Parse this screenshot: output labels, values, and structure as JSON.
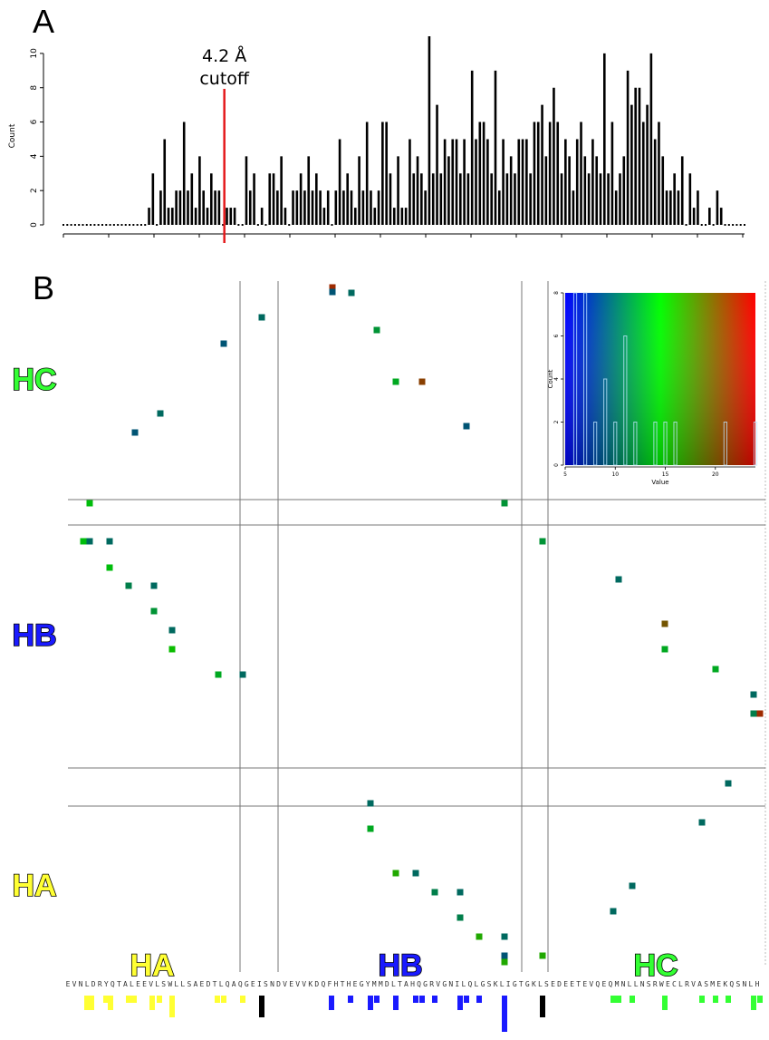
{
  "panels": {
    "a": "A",
    "b": "B"
  },
  "chart_data": [
    {
      "type": "bar",
      "panel": "A",
      "ylabel": "Count",
      "ylim": [
        0,
        11
      ],
      "yticks": [
        0,
        2,
        4,
        6,
        8,
        10
      ],
      "annotation": {
        "line1": "4.2 Å",
        "line2": "cutoff",
        "line_color": "#e41a1c",
        "x_index": 41
      },
      "values": [
        0,
        0,
        0,
        0,
        0,
        0,
        0,
        0,
        0,
        0,
        0,
        0,
        0,
        0,
        0,
        0,
        0,
        0,
        0,
        0,
        0,
        0,
        1,
        3,
        0,
        2,
        5,
        1,
        1,
        2,
        2,
        6,
        2,
        3,
        1,
        4,
        2,
        1,
        3,
        2,
        2,
        0,
        1,
        1,
        1,
        0,
        0,
        4,
        2,
        3,
        0,
        1,
        0,
        3,
        3,
        2,
        4,
        1,
        0,
        2,
        2,
        3,
        2,
        4,
        2,
        3,
        2,
        1,
        2,
        0,
        2,
        5,
        2,
        3,
        2,
        1,
        4,
        2,
        6,
        2,
        1,
        2,
        6,
        6,
        3,
        1,
        4,
        1,
        1,
        5,
        3,
        4,
        3,
        2,
        11,
        3,
        7,
        3,
        5,
        4,
        5,
        5,
        3,
        5,
        3,
        9,
        5,
        6,
        6,
        5,
        3,
        9,
        2,
        5,
        3,
        4,
        3,
        5,
        5,
        5,
        3,
        6,
        6,
        7,
        4,
        6,
        8,
        6,
        3,
        5,
        4,
        2,
        5,
        6,
        4,
        3,
        5,
        4,
        3,
        10,
        3,
        6,
        2,
        3,
        4,
        9,
        7,
        8,
        8,
        6,
        7,
        10,
        5,
        6,
        4,
        2,
        2,
        3,
        2,
        4,
        0,
        3,
        1,
        2,
        0,
        0,
        1,
        0,
        2,
        1,
        0,
        0,
        0,
        0,
        0,
        0
      ]
    },
    {
      "type": "heatmap",
      "panel": "B",
      "helices": [
        {
          "name": "HA",
          "color": "#ffff33"
        },
        {
          "name": "HB",
          "color": "#1a1aff"
        },
        {
          "name": "HC",
          "color": "#33ff33"
        }
      ],
      "sequence": "EVNLDRYQTALEEVLSWLLSAEDTLQAQGEISNDVEVVKDQFHTHEGYMMDLTAHQGRVGNILQLGSKLIGTGKLSEDEETEVQEQMNLLNSRWECLRVASMEKQSNLH",
      "boundary_index": [
        27,
        33,
        81
      ],
      "contacts": [
        {
          "i": 3,
          "j": 42,
          "v": 9
        },
        {
          "i": 4,
          "j": 32,
          "v": 10
        },
        {
          "i": 5,
          "j": 21,
          "v": 7
        },
        {
          "i": 6,
          "j": 17,
          "v": 7
        },
        {
          "i": 7,
          "j": 7,
          "v": 7
        },
        {
          "i": 9,
          "j": 13,
          "v": 9
        },
        {
          "i": 15,
          "j": 39,
          "v": 9
        },
        {
          "i": 14,
          "j": 38,
          "v": 8
        },
        {
          "i": 25,
          "j": 36,
          "v": 16
        },
        {
          "i": 25,
          "j": 37,
          "v": 12
        },
        {
          "i": 30,
          "j": 33,
          "v": 15
        },
        {
          "i": 27,
          "j": 26,
          "v": 12
        },
        {
          "i": 22,
          "j": 22,
          "v": 7
        },
        {
          "i": 44,
          "j": 47,
          "v": 16
        },
        {
          "i": 34,
          "j": 48,
          "v": 22
        },
        {
          "i": 46,
          "j": 43,
          "v": 14
        },
        {
          "i": 56,
          "j": 44,
          "v": 11
        },
        {
          "i": 40,
          "j": 1,
          "v": 14
        },
        {
          "i": 2,
          "j": 8,
          "v": 8
        },
        {
          "i": 3,
          "j": 9,
          "v": 10
        },
        {
          "i": 2,
          "j": 4,
          "v": 12
        },
        {
          "i": 3,
          "j": 3,
          "v": 10
        },
        {
          "i": 10,
          "j": 2,
          "v": 10
        },
        {
          "i": 12,
          "j": 8,
          "v": 8
        },
        {
          "i": 15,
          "j": 18,
          "v": 14
        },
        {
          "i": 16,
          "j": 2,
          "v": 16
        },
        {
          "i": 19,
          "j": 6,
          "v": 19
        },
        {
          "i": 22,
          "j": 6,
          "v": 8
        },
        {
          "i": 43,
          "j": 1,
          "v": 13
        },
        {
          "i": 50,
          "j": 5,
          "v": 13
        },
        {
          "i": 57,
          "j": 7,
          "v": 13
        },
        {
          "i": 67,
          "j": 12,
          "v": 23
        },
        {
          "i": 70,
          "j": 14,
          "v": 9
        },
        {
          "i": 73,
          "j": 17,
          "v": 10
        },
        {
          "i": 78,
          "j": 5,
          "v": 12
        }
      ]
    },
    {
      "type": "bar",
      "panel": "B-inset",
      "xlabel": "Value",
      "ylabel": "Count",
      "xlim": [
        5,
        24
      ],
      "ylim": [
        0,
        8
      ],
      "xticks": [
        5,
        10,
        15,
        20
      ],
      "yticks": [
        0,
        2,
        4,
        6,
        8
      ],
      "colorscale": [
        "#0000ff",
        "#00ff00",
        "#ff0000"
      ],
      "bars": [
        {
          "x": 6,
          "v": 8
        },
        {
          "x": 7,
          "v": 8
        },
        {
          "x": 8,
          "v": 2
        },
        {
          "x": 9,
          "v": 4
        },
        {
          "x": 10,
          "v": 2
        },
        {
          "x": 11,
          "v": 6
        },
        {
          "x": 12,
          "v": 2
        },
        {
          "x": 14,
          "v": 2
        },
        {
          "x": 15,
          "v": 2
        },
        {
          "x": 16,
          "v": 2
        },
        {
          "x": 21,
          "v": 2
        },
        {
          "x": 24,
          "v": 2
        }
      ]
    }
  ]
}
